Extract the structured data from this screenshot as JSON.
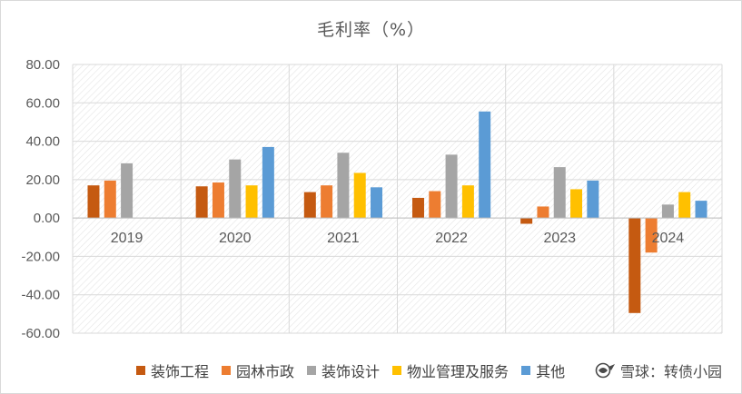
{
  "chart_data": {
    "type": "bar",
    "title": "毛利率（%）",
    "categories": [
      "2019",
      "2020",
      "2021",
      "2022",
      "2023",
      "2024"
    ],
    "ylim": [
      -60,
      80
    ],
    "yticks": [
      "80.00",
      "60.00",
      "40.00",
      "20.00",
      "0.00",
      "-20.00",
      "-40.00",
      "-60.00"
    ],
    "grid": true,
    "legend_position": "bottom",
    "series": [
      {
        "name": "装饰工程",
        "color": "#c55a11",
        "values": [
          17,
          16.5,
          13.5,
          10.5,
          -3,
          -49.5
        ]
      },
      {
        "name": "园林市政",
        "color": "#ed7d31",
        "values": [
          19.5,
          18.5,
          17,
          14,
          6,
          -18
        ]
      },
      {
        "name": "装饰设计",
        "color": "#a5a5a5",
        "values": [
          28.5,
          30.5,
          34,
          33,
          26.5,
          7
        ]
      },
      {
        "name": "物业管理及服务",
        "color": "#ffc000",
        "values": [
          null,
          17,
          23.5,
          17,
          15,
          13.5
        ]
      },
      {
        "name": "其他",
        "color": "#5b9bd5",
        "values": [
          null,
          37,
          16,
          55.5,
          19.5,
          9
        ]
      }
    ]
  },
  "watermark": {
    "icon": "snowball-logo-icon",
    "text": "雪球：转债小园"
  }
}
